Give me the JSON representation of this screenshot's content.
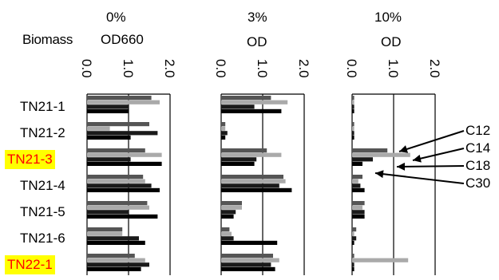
{
  "chart_data": {
    "type": "bar",
    "orientation": "horizontal",
    "row_label": "Biomass",
    "row_categories": [
      "TN21-1",
      "TN21-2",
      "TN21-3",
      "TN21-4",
      "TN21-5",
      "TN21-6",
      "TN22-1"
    ],
    "highlighted_rows": [
      "TN21-3",
      "TN22-1"
    ],
    "highlight_colors": {
      "background": "#ffff00",
      "text": "#ff0000"
    },
    "panels": [
      {
        "condition": "0%",
        "axis_label": "OD660",
        "ticks": [
          "0.0",
          "1.0",
          "2.0"
        ],
        "xlim": [
          0,
          2
        ]
      },
      {
        "condition": "3%",
        "axis_label": "OD",
        "ticks": [
          "0.0",
          "1.0",
          "2.0"
        ],
        "xlim": [
          0,
          2
        ]
      },
      {
        "condition": "10%",
        "axis_label": "OD",
        "ticks": [
          "0.0",
          "1.0",
          "2.0"
        ],
        "xlim": [
          0,
          2
        ]
      }
    ],
    "series": [
      {
        "name": "C12",
        "color": "#555555"
      },
      {
        "name": "C14",
        "color": "#aaaaaa"
      },
      {
        "name": "C18",
        "color": "#1a1a1a"
      },
      {
        "name": "C30",
        "color": "#000000"
      }
    ],
    "values": [
      [
        [
          1.55,
          1.75,
          1.0,
          1.0
        ],
        [
          1.5,
          0.55,
          1.7,
          1.05
        ],
        [
          1.4,
          1.8,
          1.05,
          1.8
        ],
        [
          1.35,
          1.4,
          1.55,
          1.75
        ],
        [
          1.45,
          1.5,
          1.0,
          1.7
        ],
        [
          0.85,
          0.85,
          1.25,
          1.4
        ],
        [
          1.15,
          1.4,
          1.5,
          1.3
        ]
      ],
      [
        [
          1.2,
          1.6,
          0.8,
          1.45
        ],
        [
          0.1,
          0.1,
          0.15,
          0.1
        ],
        [
          1.1,
          1.45,
          0.85,
          0.8
        ],
        [
          1.5,
          1.55,
          1.4,
          1.7
        ],
        [
          0.5,
          0.5,
          0.35,
          0.3
        ],
        [
          0.2,
          0.25,
          0.3,
          1.35
        ],
        [
          1.25,
          1.4,
          1.2,
          1.3
        ]
      ],
      [
        [
          0.05,
          0.05,
          0.05,
          0.05
        ],
        [
          0.05,
          0.05,
          0.05,
          0.05
        ],
        [
          0.85,
          1.4,
          0.5,
          0.25
        ],
        [
          0.25,
          0.15,
          0.2,
          0.3
        ],
        [
          0.3,
          0.25,
          0.3,
          0.3
        ],
        [
          0.1,
          0.05,
          0.1,
          0.05
        ],
        [
          0.05,
          1.35,
          0.05,
          0.05
        ]
      ]
    ],
    "annotations": [
      "C12",
      "C14",
      "C18",
      "C30"
    ]
  },
  "header": {
    "condition_0": "0%",
    "condition_3": "3%",
    "condition_10": "10%",
    "row_label": "Biomass",
    "axis_0": "OD660",
    "axis_3": "OD",
    "axis_10": "OD"
  }
}
